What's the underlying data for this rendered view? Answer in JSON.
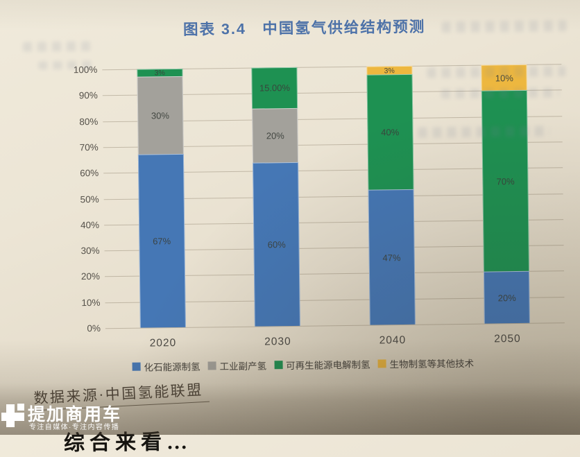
{
  "page": {
    "title": "图表 3.4　中国氢气供给结构预测",
    "source_note": "数据来源·中国氢能联盟",
    "bottom_cutoff_text": "综合来看…"
  },
  "watermark": {
    "brand": "提加商用车",
    "tagline": "专注自媒体·专注内容传播"
  },
  "chart_data": {
    "type": "bar",
    "stacked": true,
    "figure_label": "图表 3.4",
    "title": "中国氢气供给结构预测",
    "categories": [
      "2020",
      "2030",
      "2040",
      "2050"
    ],
    "series": [
      {
        "name": "化石能源制氢",
        "color": "#4577b5",
        "values": [
          67,
          60,
          47,
          20
        ],
        "labels": [
          "67%",
          "60%",
          "47%",
          "20%"
        ]
      },
      {
        "name": "工业副产氢",
        "color": "#a3a19b",
        "values": [
          30,
          20,
          0,
          0
        ],
        "labels": [
          "30%",
          "20%",
          "",
          ""
        ]
      },
      {
        "name": "可再生能源电解制氢",
        "color": "#1e9152",
        "values": [
          3,
          15,
          40,
          70
        ],
        "labels": [
          "3%",
          "15.00%",
          "40%",
          "70%"
        ]
      },
      {
        "name": "生物制氢等其他技术",
        "color": "#edb73f",
        "values": [
          0,
          0,
          3,
          10
        ],
        "labels": [
          "",
          "",
          "3%",
          "10%"
        ]
      }
    ],
    "y_ticks": [
      "100%",
      "90%",
      "80%",
      "70%",
      "60%",
      "50%",
      "40%",
      "30%",
      "20%",
      "10%",
      "0%"
    ],
    "ylim": [
      0,
      100
    ],
    "grid": true,
    "legend_position": "bottom"
  }
}
